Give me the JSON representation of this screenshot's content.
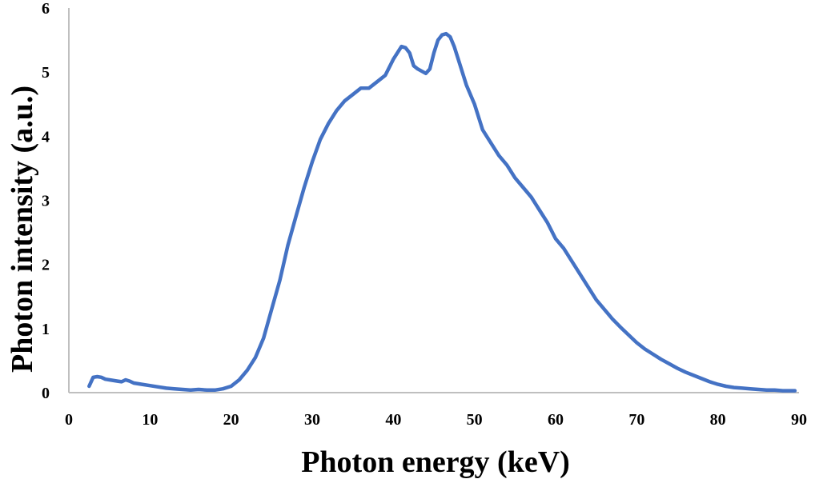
{
  "chart_data": {
    "type": "line",
    "title": "",
    "xlabel": "Photon energy (keV)",
    "ylabel": "Photon intensity (a.u.)",
    "xlim": [
      0,
      90
    ],
    "ylim": [
      0,
      6
    ],
    "xticks": [
      0,
      10,
      20,
      30,
      40,
      50,
      60,
      70,
      80,
      90
    ],
    "yticks": [
      0,
      1,
      2,
      3,
      4,
      5,
      6
    ],
    "grid": false,
    "legend": "none",
    "series": [
      {
        "color": "#4472c4",
        "x": [
          2.5,
          3.0,
          3.5,
          4.0,
          4.5,
          5.0,
          6.0,
          6.5,
          7.0,
          7.5,
          8.0,
          9.0,
          10.0,
          11.0,
          12.0,
          13.0,
          14.0,
          15.0,
          16.0,
          17.0,
          18.0,
          19.0,
          20.0,
          21.0,
          22.0,
          23.0,
          24.0,
          25.0,
          26.0,
          27.0,
          28.0,
          29.0,
          30.0,
          31.0,
          32.0,
          33.0,
          34.0,
          35.0,
          36.0,
          37.0,
          38.0,
          39.0,
          40.0,
          40.5,
          41.0,
          41.5,
          42.0,
          42.5,
          43.0,
          44.0,
          44.5,
          45.0,
          45.5,
          46.0,
          46.5,
          47.0,
          47.5,
          48.0,
          49.0,
          50.0,
          51.0,
          52.0,
          53.0,
          54.0,
          55.0,
          56.0,
          57.0,
          58.0,
          59.0,
          60.0,
          61.0,
          62.0,
          63.0,
          64.0,
          65.0,
          66.0,
          67.0,
          68.0,
          69.0,
          70.0,
          71.0,
          72.0,
          73.0,
          74.0,
          75.0,
          76.0,
          77.0,
          78.0,
          79.0,
          80.0,
          81.0,
          82.0,
          83.0,
          84.0,
          85.0,
          86.0,
          87.0,
          88.0,
          89.0,
          89.5
        ],
        "y": [
          0.1,
          0.24,
          0.25,
          0.24,
          0.21,
          0.2,
          0.18,
          0.17,
          0.2,
          0.18,
          0.15,
          0.13,
          0.11,
          0.09,
          0.07,
          0.06,
          0.05,
          0.04,
          0.05,
          0.04,
          0.04,
          0.06,
          0.1,
          0.2,
          0.35,
          0.55,
          0.85,
          1.3,
          1.75,
          2.3,
          2.75,
          3.2,
          3.6,
          3.95,
          4.2,
          4.4,
          4.55,
          4.65,
          4.75,
          4.75,
          4.85,
          4.95,
          5.2,
          5.3,
          5.4,
          5.38,
          5.3,
          5.1,
          5.05,
          4.98,
          5.05,
          5.3,
          5.5,
          5.58,
          5.6,
          5.55,
          5.4,
          5.2,
          4.8,
          4.5,
          4.1,
          3.9,
          3.7,
          3.55,
          3.35,
          3.2,
          3.05,
          2.85,
          2.65,
          2.4,
          2.25,
          2.05,
          1.85,
          1.65,
          1.45,
          1.3,
          1.15,
          1.02,
          0.9,
          0.78,
          0.68,
          0.6,
          0.52,
          0.45,
          0.38,
          0.32,
          0.27,
          0.22,
          0.17,
          0.13,
          0.1,
          0.08,
          0.07,
          0.06,
          0.05,
          0.04,
          0.04,
          0.03,
          0.03,
          0.03
        ]
      }
    ]
  }
}
